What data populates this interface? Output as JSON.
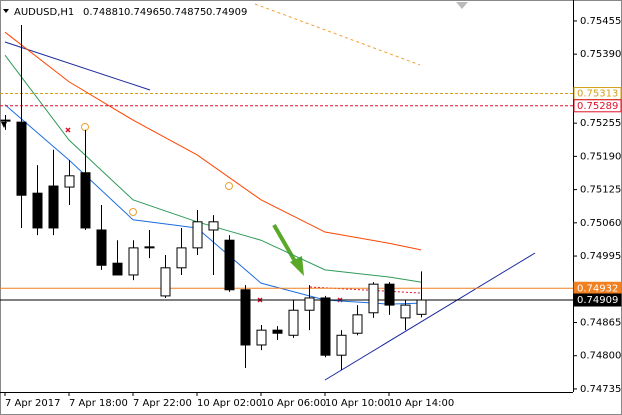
{
  "chart_data": {
    "type": "candlestick",
    "title": "AUDUSD,H1",
    "last_ohlc": [
      0.74881,
      0.74965,
      0.74875,
      0.74909
    ],
    "categories": [
      "7 Apr 2017",
      null,
      null,
      null,
      "7 Apr 18:00",
      null,
      null,
      null,
      "7 Apr 22:00",
      null,
      null,
      null,
      "10 Apr 02:00",
      null,
      null,
      null,
      "10 Apr 06:00",
      null,
      null,
      null,
      "10 Apr 10:00",
      null,
      null,
      null,
      "10 Apr 14:00",
      null,
      null
    ],
    "open": [
      0.75261,
      0.75257,
      0.75118,
      0.75132,
      0.7513,
      0.75158,
      0.75046,
      0.74981,
      0.74958,
      0.75011,
      0.74917,
      0.74972,
      0.75011,
      0.75046,
      0.75026,
      0.74929,
      0.74821,
      0.7485,
      0.7484,
      0.74889,
      0.74913,
      0.74801,
      0.74844,
      0.74884,
      0.7494,
      0.74874,
      0.74881
    ],
    "high": [
      0.75271,
      0.75447,
      0.75173,
      0.75203,
      0.75183,
      0.75242,
      0.75095,
      0.75026,
      0.75026,
      0.75046,
      0.74997,
      0.7505,
      0.75085,
      0.75075,
      0.75036,
      0.74938,
      0.7486,
      0.74858,
      0.74909,
      0.74938,
      0.74917,
      0.7485,
      0.74899,
      0.74944,
      0.74944,
      0.74909,
      0.74965
    ],
    "low": [
      0.75242,
      0.7505,
      0.75036,
      0.75036,
      0.75095,
      0.75046,
      0.74968,
      0.74958,
      0.74948,
      0.74991,
      0.74913,
      0.74958,
      0.74997,
      0.74958,
      0.74925,
      0.74776,
      0.74811,
      0.74831,
      0.74835,
      0.7485,
      0.74797,
      0.74772,
      0.7484,
      0.74874,
      0.7488,
      0.7485,
      0.74875
    ],
    "close": [
      0.75259,
      0.75114,
      0.7505,
      0.7505,
      0.75152,
      0.7505,
      0.74977,
      0.74958,
      0.75011,
      0.75013,
      0.74972,
      0.75011,
      0.75062,
      0.75062,
      0.74929,
      0.74821,
      0.7485,
      0.74844,
      0.74889,
      0.74913,
      0.74801,
      0.7484,
      0.7488,
      0.7494,
      0.74899,
      0.74899,
      0.74909
    ],
    "up_color": "#ffffff",
    "down_color": "#000000",
    "ylim": [
      0.74729,
      0.75496
    ],
    "yticks": [
      0.75455,
      {
        "value": 0.7539,
        "label": "0.75390"
      },
      0.75255,
      {
        "value": 0.7519,
        "label": "0.75190"
      },
      0.75125,
      {
        "value": 0.7506,
        "label": "0.75060"
      },
      0.74995,
      0.74865,
      {
        "value": 0.748,
        "label": "0.74800"
      },
      0.74735
    ],
    "price_lines": [
      {
        "value": 0.75313,
        "color": "#d4a017",
        "dashed": true
      },
      {
        "value": 0.75289,
        "color": "#e0102a",
        "dashed": true
      },
      {
        "value": 0.74932,
        "color": "#f08020",
        "dashed": false
      },
      {
        "value": 0.74909,
        "color": "#000000",
        "dashed": false
      }
    ],
    "overlays": [
      {
        "color": "#ff4500",
        "x": [
          0,
          4,
          8,
          12,
          16,
          20,
          24,
          26
        ],
        "values": [
          0.75433,
          0.75336,
          0.75261,
          0.75193,
          0.75105,
          0.75042,
          0.7502,
          0.75007
        ]
      },
      {
        "color": "#2e9b57",
        "x": [
          0,
          4,
          8,
          12,
          16,
          20,
          24,
          26
        ],
        "values": [
          0.75388,
          0.75222,
          0.75105,
          0.75062,
          0.75026,
          0.74968,
          0.74954,
          0.74944
        ]
      },
      {
        "color": "#1e6fe0",
        "x": [
          0,
          4,
          8,
          12,
          16,
          20,
          24,
          26
        ],
        "values": [
          0.75291,
          0.75183,
          0.75066,
          0.7505,
          0.74942,
          0.74909,
          0.74901,
          0.74903
        ]
      }
    ]
  }
}
